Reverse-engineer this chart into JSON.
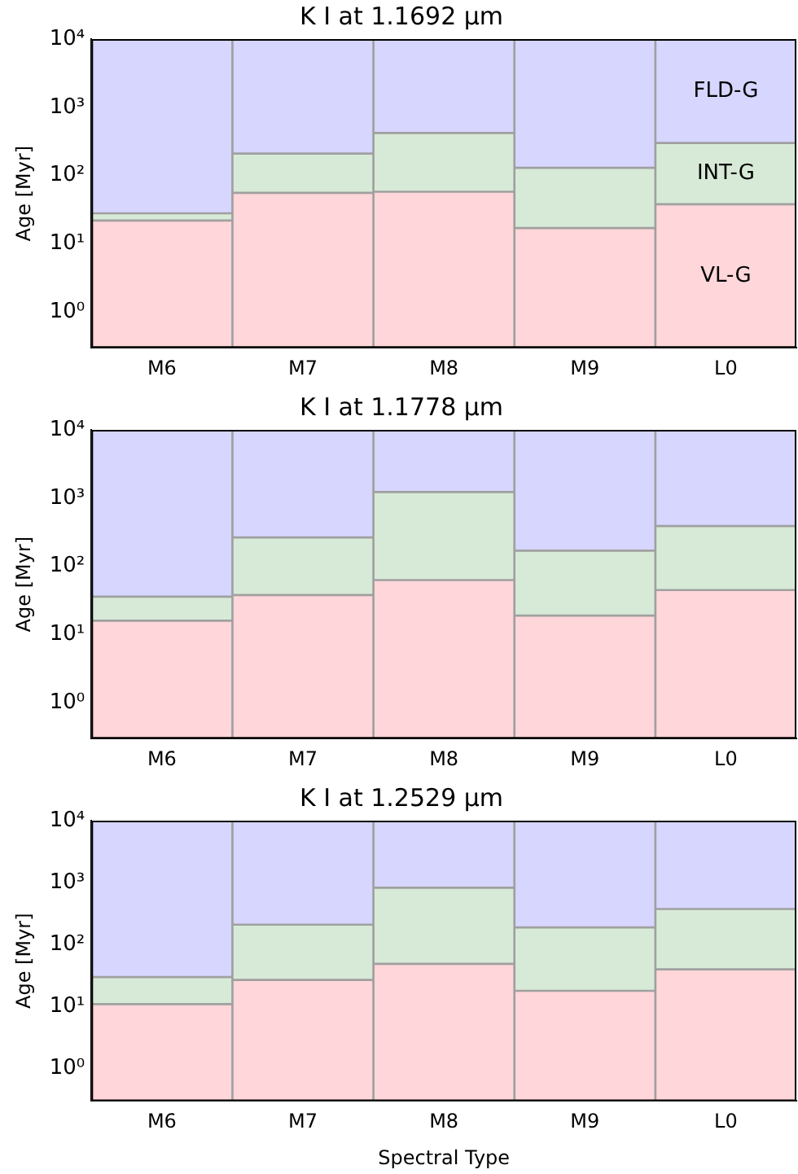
{
  "chart_data": [
    {
      "type": "bar",
      "title": "K I at 1.1692 μm",
      "ylabel": "Age [Myr]",
      "categories": [
        "M6",
        "M7",
        "M8",
        "M9",
        "L0"
      ],
      "stacked": true,
      "log": true,
      "ylim": [
        0.3,
        10000
      ],
      "yticks": [
        {
          "value": 1,
          "label": "10⁰"
        },
        {
          "value": 10,
          "label": "10¹"
        },
        {
          "value": 100,
          "label": "10²"
        },
        {
          "value": 1000,
          "label": "10³"
        },
        {
          "value": 10000,
          "label": "10⁴"
        }
      ],
      "series": [
        {
          "name": "VL-G",
          "color": "#ffd6d9",
          "values": [
            22,
            56,
            58,
            17,
            38
          ]
        },
        {
          "name": "INT-G",
          "color": "#d7ead7",
          "values": [
            6,
            154,
            362,
            113,
            262
          ]
        },
        {
          "name": "FLD-G",
          "color": "#d6d6ff",
          "values": [
            9972,
            9790,
            9580,
            9870,
            9700
          ]
        }
      ]
    },
    {
      "type": "bar",
      "title": "K I at 1.1778 μm",
      "ylabel": "Age [Myr]",
      "categories": [
        "M6",
        "M7",
        "M8",
        "M9",
        "L0"
      ],
      "stacked": true,
      "log": true,
      "ylim": [
        0.3,
        10000
      ],
      "yticks": [
        {
          "value": 1,
          "label": "10⁰"
        },
        {
          "value": 10,
          "label": "10¹"
        },
        {
          "value": 100,
          "label": "10²"
        },
        {
          "value": 1000,
          "label": "10³"
        },
        {
          "value": 10000,
          "label": "10⁴"
        }
      ],
      "series": [
        {
          "color": "#ffd6d9",
          "values": [
            16,
            38,
            63,
            19,
            45
          ]
        },
        {
          "color": "#d7ead7",
          "values": [
            20,
            228,
            1167,
            151,
            345
          ]
        },
        {
          "color": "#d6d6ff",
          "values": [
            9964,
            9734,
            8770,
            9830,
            9610
          ]
        }
      ]
    },
    {
      "type": "bar",
      "title": "K I at 1.2529 μm",
      "ylabel": "Age [Myr]",
      "xlabel": "Spectral Type",
      "categories": [
        "M6",
        "M7",
        "M8",
        "M9",
        "L0"
      ],
      "stacked": true,
      "log": true,
      "ylim": [
        0.3,
        10000
      ],
      "yticks": [
        {
          "value": 1,
          "label": "10⁰"
        },
        {
          "value": 10,
          "label": "10¹"
        },
        {
          "value": 100,
          "label": "10²"
        },
        {
          "value": 1000,
          "label": "10³"
        },
        {
          "value": 10000,
          "label": "10⁴"
        }
      ],
      "series": [
        {
          "color": "#ffd6d9",
          "values": [
            11,
            27,
            49,
            18,
            40
          ]
        },
        {
          "color": "#d7ead7",
          "values": [
            19,
            183,
            781,
            172,
            336
          ]
        },
        {
          "color": "#d6d6ff",
          "values": [
            9970,
            9790,
            9170,
            9810,
            9624
          ]
        }
      ]
    }
  ]
}
